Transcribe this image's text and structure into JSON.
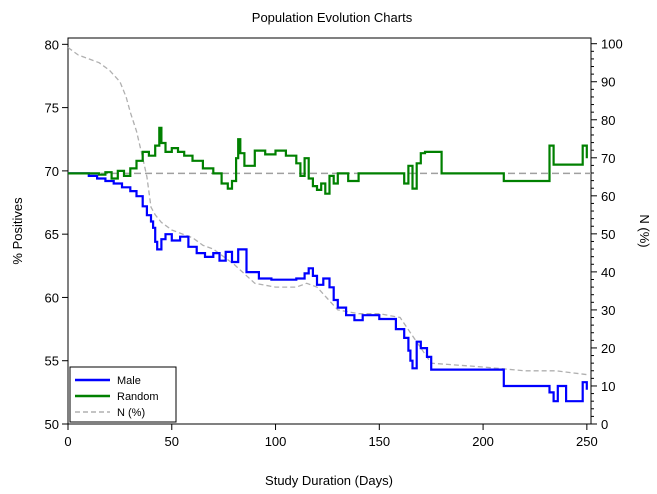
{
  "chart_data": {
    "type": "line",
    "title": "Population Evolution Charts",
    "xlabel": "Study Duration (Days)",
    "ylabel": "% Positives",
    "y2label": "N (%)",
    "xlim": [
      0,
      252
    ],
    "ylim": [
      50,
      80.5
    ],
    "y2lim": [
      0,
      101.5
    ],
    "xticks": [
      0,
      50,
      100,
      150,
      200,
      250
    ],
    "yticks": [
      50,
      55,
      60,
      65,
      70,
      75,
      80
    ],
    "y2ticks": [
      0,
      10,
      20,
      30,
      40,
      50,
      60,
      70,
      80,
      90,
      100
    ],
    "reference_line": {
      "y": 69.8,
      "axis": "y",
      "color": "#a0a0a0"
    },
    "legend": {
      "position": "bottom-left",
      "entries": [
        {
          "label": "Male",
          "color": "#0000ff",
          "style": "solid"
        },
        {
          "label": "Random",
          "color": "#008000",
          "style": "solid"
        },
        {
          "label": "N (%)",
          "color": "#b0b0b0",
          "style": "dashed"
        }
      ]
    },
    "series": [
      {
        "name": "Male",
        "color": "#0000ff",
        "axis": "y",
        "step": true,
        "x": [
          0,
          10,
          14,
          18,
          22,
          26,
          30,
          33,
          36,
          38,
          40,
          41,
          42,
          43,
          45,
          47,
          50,
          54,
          58,
          62,
          66,
          70,
          73,
          76,
          79,
          82,
          86,
          92,
          98,
          104,
          110,
          114,
          116,
          118,
          120,
          123,
          126,
          128,
          130,
          134,
          138,
          142,
          150,
          158,
          162,
          164,
          165,
          166,
          168,
          170,
          173,
          175,
          200,
          210,
          220,
          232,
          234,
          236,
          240,
          246,
          248,
          250
        ],
        "y": [
          69.8,
          69.6,
          69.4,
          69.2,
          69.0,
          68.7,
          68.4,
          68.0,
          67.2,
          66.5,
          66.0,
          65.5,
          64.4,
          63.8,
          64.6,
          65.0,
          64.5,
          64.8,
          64.0,
          63.5,
          63.2,
          63.5,
          62.9,
          63.6,
          62.8,
          63.8,
          62.0,
          61.5,
          61.4,
          61.4,
          61.5,
          61.9,
          62.3,
          61.7,
          61.0,
          61.5,
          60.8,
          59.8,
          59.2,
          58.6,
          58.2,
          58.6,
          58.3,
          57.5,
          56.8,
          55.8,
          55.0,
          54.4,
          56.5,
          56.0,
          55.3,
          54.3,
          54.3,
          53.0,
          53.0,
          52.5,
          51.8,
          53.0,
          51.8,
          51.8,
          53.3,
          52.7
        ]
      },
      {
        "name": "Random",
        "color": "#008000",
        "axis": "y",
        "step": true,
        "x": [
          0,
          15,
          18,
          21,
          24,
          27,
          30,
          33,
          36,
          39,
          42,
          44,
          45,
          47,
          50,
          53,
          56,
          60,
          65,
          70,
          74,
          77,
          79,
          81,
          82,
          83,
          85,
          90,
          95,
          100,
          105,
          110,
          112,
          114,
          116,
          118,
          120,
          122,
          124,
          126,
          128,
          130,
          135,
          140,
          145,
          150,
          158,
          162,
          164,
          166,
          168,
          170,
          172,
          180,
          200,
          210,
          222,
          232,
          234,
          240,
          246,
          248,
          250
        ],
        "y": [
          69.8,
          69.7,
          69.9,
          69.4,
          70.0,
          69.6,
          70.2,
          70.8,
          71.5,
          71.2,
          72.0,
          73.4,
          72.2,
          71.5,
          71.8,
          71.5,
          71.2,
          70.8,
          70.2,
          69.8,
          69.0,
          68.6,
          69.2,
          71.0,
          72.5,
          71.4,
          70.4,
          71.6,
          71.3,
          71.6,
          71.2,
          70.6,
          69.6,
          71.0,
          69.4,
          68.8,
          68.5,
          69.0,
          68.2,
          69.6,
          69.0,
          69.8,
          69.2,
          69.8,
          69.8,
          69.8,
          69.8,
          69.0,
          70.4,
          68.6,
          70.6,
          71.4,
          71.5,
          69.8,
          69.8,
          69.2,
          69.2,
          72.0,
          70.5,
          70.5,
          70.5,
          72.0,
          71.0
        ]
      },
      {
        "name": "N (%)",
        "color": "#b0b0b0",
        "axis": "y2",
        "step": false,
        "dashed": true,
        "x": [
          0,
          5,
          10,
          15,
          20,
          25,
          28,
          30,
          33,
          36,
          38,
          40,
          42,
          45,
          50,
          55,
          60,
          65,
          70,
          75,
          80,
          84,
          90,
          100,
          110,
          115,
          120,
          125,
          130,
          140,
          150,
          160,
          165,
          170,
          175,
          200,
          220,
          235,
          250
        ],
        "y": [
          99,
          97,
          96,
          95,
          93,
          90,
          86,
          82,
          77,
          70,
          65,
          57,
          55,
          53,
          51,
          50,
          49,
          47,
          46,
          44,
          42,
          40,
          37,
          36,
          36,
          37,
          36,
          33,
          30,
          29,
          29,
          28,
          24,
          20,
          16,
          15,
          14,
          14,
          13
        ]
      }
    ]
  }
}
